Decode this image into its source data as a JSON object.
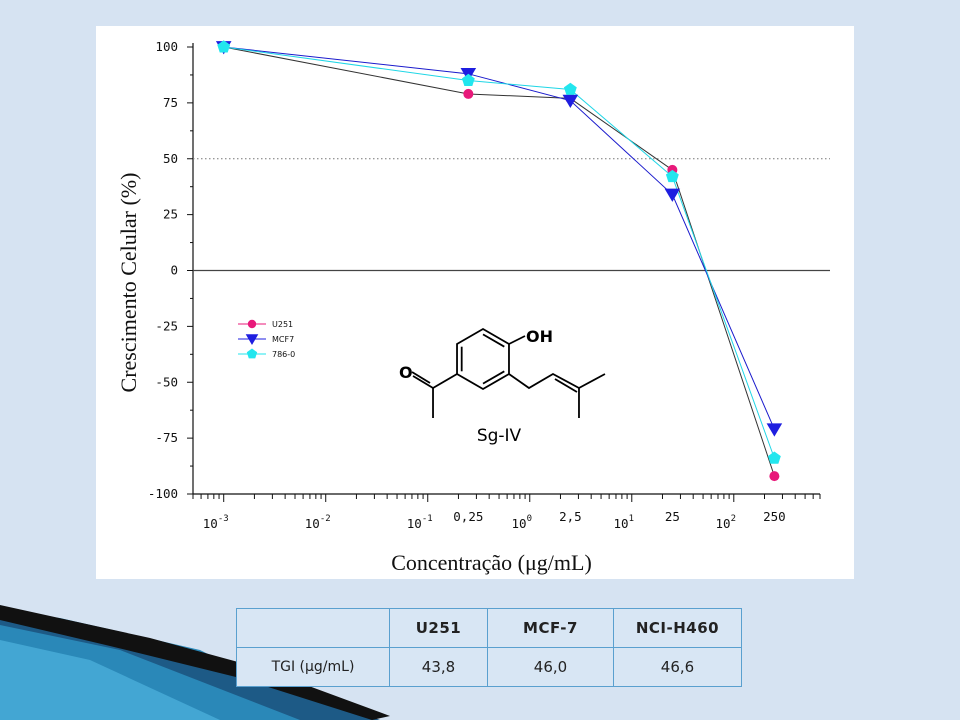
{
  "chart_data": {
    "type": "line",
    "xlabel": "Concentração (μg/mL)",
    "ylabel": "Crescimento Celular (%)",
    "x_scale": "log",
    "xlim": [
      0.0005,
      700
    ],
    "ylim": [
      -100,
      100
    ],
    "y_ticks": [
      100,
      75,
      50,
      25,
      0,
      -25,
      -50,
      -75,
      -100
    ],
    "x_tick_labels": [
      {
        "value": 0.001,
        "base": "10",
        "exp": "-3"
      },
      {
        "value": 0.01,
        "base": "10",
        "exp": "-2"
      },
      {
        "value": 0.1,
        "base": "10",
        "exp": "-1"
      },
      {
        "value": 1,
        "base": "10",
        "exp": "0"
      },
      {
        "value": 10,
        "base": "10",
        "exp": "1"
      },
      {
        "value": 100,
        "base": "10",
        "exp": "2"
      }
    ],
    "x_value_labels": [
      {
        "value": 0.25,
        "label": "0,25"
      },
      {
        "value": 2.5,
        "label": "2,5"
      },
      {
        "value": 25,
        "label": "25"
      },
      {
        "value": 250,
        "label": "250"
      }
    ],
    "x": [
      0.001,
      0.25,
      2.5,
      25,
      250
    ],
    "reference_lines": [
      {
        "y": 50,
        "style": "dotted"
      },
      {
        "y": 0,
        "style": "solid"
      }
    ],
    "grid": false,
    "legend_position": "lower-left",
    "series": [
      {
        "name": "U251",
        "values": [
          100,
          79,
          77,
          45,
          -92
        ],
        "color": "#e8197a",
        "marker": "circle"
      },
      {
        "name": "MCF7",
        "values": [
          100,
          88,
          76,
          34,
          -71
        ],
        "color": "#1e1ee0",
        "marker": "triangle-down"
      },
      {
        "name": "786-0",
        "values": [
          100,
          85,
          81,
          42,
          -84
        ],
        "color": "#22e6ee",
        "marker": "pentagon"
      }
    ],
    "annotation": {
      "compound_label": "Sg-IV",
      "atom_labels": [
        "OH",
        "O"
      ]
    }
  },
  "table": {
    "headers": [
      "",
      "U251",
      "MCF-7",
      "NCI-H460"
    ],
    "rows": [
      {
        "label": "TGI (μg/mL)",
        "values": [
          "43,8",
          "46,0",
          "46,6"
        ]
      }
    ]
  }
}
